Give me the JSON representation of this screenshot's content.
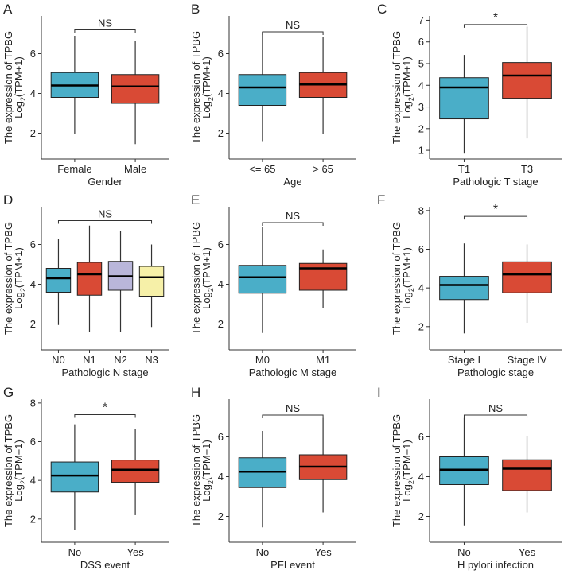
{
  "colors": {
    "blue": "#4aaec8",
    "red": "#d94a35",
    "purple": "#b9b6da",
    "yellow": "#f6f0a8"
  },
  "chart_data": [
    {
      "panel": "A",
      "type": "box",
      "xlabel": "Gender",
      "ylabel": "The expression of TPBG",
      "ylabel2": "Log2(TPM+1)",
      "ylim": [
        0.7,
        7.9
      ],
      "yticks": [
        2,
        4,
        6
      ],
      "significance": "NS",
      "bracket_y": 7.2,
      "categories": [
        "Female",
        "Male"
      ],
      "fill": [
        "blue",
        "red"
      ],
      "boxes": [
        {
          "min": 1.95,
          "q1": 3.8,
          "median": 4.4,
          "q3": 5.05,
          "max": 6.9
        },
        {
          "min": 1.45,
          "q1": 3.5,
          "median": 4.35,
          "q3": 4.95,
          "max": 6.65
        }
      ]
    },
    {
      "panel": "B",
      "type": "box",
      "xlabel": "Age",
      "ylabel": "The expression of TPBG",
      "ylabel2": "Log2(TPM+1)",
      "ylim": [
        0.7,
        7.9
      ],
      "yticks": [
        2,
        4,
        6
      ],
      "significance": "NS",
      "bracket_y": 7.1,
      "categories": [
        "<= 65",
        "> 65"
      ],
      "fill": [
        "blue",
        "red"
      ],
      "boxes": [
        {
          "min": 1.6,
          "q1": 3.4,
          "median": 4.3,
          "q3": 4.95,
          "max": 7.1
        },
        {
          "min": 1.95,
          "q1": 3.8,
          "median": 4.45,
          "q3": 5.05,
          "max": 6.85
        }
      ]
    },
    {
      "panel": "C",
      "type": "box",
      "xlabel": "Pathologic T stage",
      "ylabel": "The expression of TPBG",
      "ylabel2": "Log2(TPM+1)",
      "ylim": [
        0.6,
        7.2
      ],
      "yticks": [
        1,
        2,
        3,
        4,
        5,
        6,
        7
      ],
      "significance": "*",
      "bracket_y": 6.8,
      "categories": [
        "T1",
        "T3"
      ],
      "fill": [
        "blue",
        "red"
      ],
      "boxes": [
        {
          "min": 0.85,
          "q1": 2.45,
          "median": 3.9,
          "q3": 4.35,
          "max": 5.4
        },
        {
          "min": 1.55,
          "q1": 3.4,
          "median": 4.45,
          "q3": 5.05,
          "max": 6.7
        }
      ]
    },
    {
      "panel": "D",
      "type": "box",
      "xlabel": "Pathologic N stage",
      "ylabel": "The expression of TPBG",
      "ylabel2": "Log2(TPM+1)",
      "ylim": [
        0.7,
        7.9
      ],
      "yticks": [
        2,
        4,
        6
      ],
      "significance": "NS",
      "bracket_y": 7.2,
      "categories": [
        "N0",
        "N1",
        "N2",
        "N3"
      ],
      "fill": [
        "blue",
        "red",
        "purple",
        "yellow"
      ],
      "boxes": [
        {
          "min": 1.95,
          "q1": 3.6,
          "median": 4.3,
          "q3": 4.8,
          "max": 6.3
        },
        {
          "min": 1.6,
          "q1": 3.45,
          "median": 4.5,
          "q3": 5.1,
          "max": 6.95
        },
        {
          "min": 1.6,
          "q1": 3.7,
          "median": 4.4,
          "q3": 5.15,
          "max": 6.7
        },
        {
          "min": 1.85,
          "q1": 3.4,
          "median": 4.35,
          "q3": 4.9,
          "max": 6.0
        }
      ]
    },
    {
      "panel": "E",
      "type": "box",
      "xlabel": "Pathologic M stage",
      "ylabel": "The expression of TPBG",
      "ylabel2": "Log2(TPM+1)",
      "ylim": [
        0.7,
        7.9
      ],
      "yticks": [
        2,
        4,
        6
      ],
      "significance": "NS",
      "bracket_y": 7.1,
      "categories": [
        "M0",
        "M1"
      ],
      "fill": [
        "blue",
        "red"
      ],
      "boxes": [
        {
          "min": 1.55,
          "q1": 3.55,
          "median": 4.35,
          "q3": 4.95,
          "max": 6.9
        },
        {
          "min": 2.8,
          "q1": 3.7,
          "median": 4.8,
          "q3": 5.05,
          "max": 5.75
        }
      ]
    },
    {
      "panel": "F",
      "type": "box",
      "xlabel": "Pathologic stage",
      "ylabel": "The expression of TPBG",
      "ylabel2": "Log2(TPM+1)",
      "ylim": [
        0.8,
        8.2
      ],
      "yticks": [
        2,
        4,
        6,
        8
      ],
      "significance": "*",
      "bracket_y": 7.7,
      "categories": [
        "Stage I",
        "Stage IV"
      ],
      "fill": [
        "blue",
        "red"
      ],
      "boxes": [
        {
          "min": 1.65,
          "q1": 3.4,
          "median": 4.15,
          "q3": 4.6,
          "max": 6.3
        },
        {
          "min": 2.2,
          "q1": 3.75,
          "median": 4.7,
          "q3": 5.35,
          "max": 6.25
        }
      ]
    },
    {
      "panel": "G",
      "type": "box",
      "xlabel": "DSS event",
      "ylabel": "The expression of TPBG",
      "ylabel2": "Log2(TPM+1)",
      "ylim": [
        0.8,
        8.2
      ],
      "yticks": [
        2,
        4,
        6,
        8
      ],
      "significance": "*",
      "bracket_y": 7.4,
      "categories": [
        "No",
        "Yes"
      ],
      "fill": [
        "blue",
        "red"
      ],
      "boxes": [
        {
          "min": 1.45,
          "q1": 3.4,
          "median": 4.25,
          "q3": 4.95,
          "max": 6.9
        },
        {
          "min": 2.2,
          "q1": 3.9,
          "median": 4.55,
          "q3": 5.05,
          "max": 6.65
        }
      ]
    },
    {
      "panel": "H",
      "type": "box",
      "xlabel": "PFI event",
      "ylabel": "The expression of TPBG",
      "ylabel2": "Log2(TPM+1)",
      "ylim": [
        0.7,
        7.9
      ],
      "yticks": [
        2,
        4,
        6
      ],
      "significance": "NS",
      "bracket_y": 7.1,
      "categories": [
        "No",
        "Yes"
      ],
      "fill": [
        "blue",
        "red"
      ],
      "boxes": [
        {
          "min": 1.45,
          "q1": 3.45,
          "median": 4.25,
          "q3": 4.95,
          "max": 6.3
        },
        {
          "min": 2.2,
          "q1": 3.85,
          "median": 4.5,
          "q3": 5.1,
          "max": 6.95
        }
      ]
    },
    {
      "panel": "I",
      "type": "box",
      "xlabel": "H pylori infection",
      "ylabel": "The expression of TPBG",
      "ylabel2": "Log2(TPM+1)",
      "ylim": [
        0.7,
        7.9
      ],
      "yticks": [
        2,
        4,
        6
      ],
      "significance": "NS",
      "bracket_y": 7.1,
      "categories": [
        "No",
        "Yes"
      ],
      "fill": [
        "blue",
        "red"
      ],
      "boxes": [
        {
          "min": 1.55,
          "q1": 3.6,
          "median": 4.35,
          "q3": 5.0,
          "max": 6.95
        },
        {
          "min": 2.2,
          "q1": 3.3,
          "median": 4.4,
          "q3": 4.85,
          "max": 6.05
        }
      ]
    }
  ]
}
